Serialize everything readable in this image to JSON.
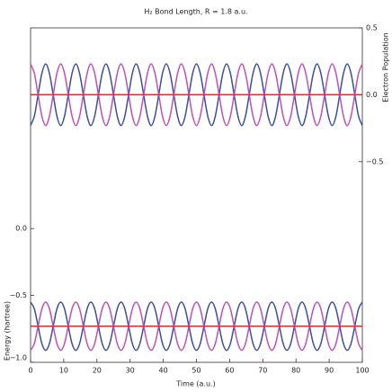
{
  "chart_data": {
    "type": "line",
    "title": "H₂ Bond Length, R = 1.8 a.u.",
    "xlabel": "Time (a.u.)",
    "ylabel": "Energy (hartree)",
    "y2label": "Electron Population",
    "x": [
      0,
      1.14,
      2.27,
      3.41,
      4.55,
      5.68,
      6.82,
      7.95,
      9.09,
      10.23,
      11.36,
      12.5,
      13.64,
      14.77,
      15.91,
      17.05,
      18.18,
      19.32,
      20.45,
      21.59,
      22.73,
      23.86,
      25,
      26.14,
      27.27,
      28.41,
      29.55,
      30.68,
      31.82,
      32.95,
      34.09,
      35.23,
      36.36,
      37.5,
      38.64,
      39.77,
      40.91,
      42.05,
      43.18,
      44.32,
      45.45,
      46.59,
      47.73,
      48.86,
      50,
      51.14,
      52.27,
      53.41,
      54.55,
      55.68,
      56.82,
      57.95,
      59.09,
      60.23,
      61.36,
      62.5,
      63.64,
      64.77,
      65.91,
      67.05,
      68.18,
      69.32,
      70.45,
      71.59,
      72.73,
      73.86,
      75,
      76.14,
      77.27,
      78.41,
      79.55,
      80.68,
      81.82,
      82.95,
      84.09,
      85.23,
      86.36,
      87.5,
      88.64,
      89.77,
      90.91,
      92.05,
      93.18,
      94.32,
      95.45,
      96.59,
      97.73,
      98.86,
      100
    ],
    "xlim": [
      0,
      100
    ],
    "xticks": [
      0,
      10,
      20,
      30,
      40,
      50,
      60,
      70,
      80,
      90,
      100
    ],
    "ylim": [
      -1,
      1.5
    ],
    "yticks": [
      {
        "value": -1,
        "label": "−1.0"
      },
      {
        "value": -0.5,
        "label": "−0.5"
      },
      {
        "value": 0,
        "label": "0.0"
      }
    ],
    "y2lim": [
      -2,
      0.5
    ],
    "y2ticks": [
      {
        "value": 0.5,
        "label": "0.5"
      },
      {
        "value": 0,
        "label": "0.0"
      },
      {
        "value": -0.5,
        "label": "−0.5"
      }
    ],
    "series": [
      {
        "color": "#3b4ea0",
        "axis": "y2",
        "values": [
          -0.23,
          -0.16,
          0,
          0.16,
          0.23,
          0.16,
          0,
          -0.16,
          -0.23,
          -0.16,
          0,
          0.16,
          0.23,
          0.16,
          0,
          -0.16,
          -0.23,
          -0.16,
          0,
          0.16,
          0.23,
          0.16,
          0,
          -0.16,
          -0.23,
          -0.16,
          0,
          0.16,
          0.23,
          0.16,
          0,
          -0.16,
          -0.23,
          -0.16,
          0,
          0.16,
          0.23,
          0.16,
          0,
          -0.16,
          -0.23,
          -0.16,
          0,
          0.16,
          0.23,
          0.16,
          0,
          -0.16,
          -0.23,
          -0.16,
          0,
          0.16,
          0.23,
          0.16,
          0,
          -0.16,
          -0.23,
          -0.16,
          0,
          0.16,
          0.23,
          0.16,
          0,
          -0.16,
          -0.23,
          -0.16,
          0,
          0.16,
          0.23,
          0.16,
          0,
          -0.16,
          -0.23,
          -0.16,
          0,
          0.16,
          0.23,
          0.16,
          0,
          -0.16,
          -0.23,
          -0.16,
          0,
          0.16,
          0.23,
          0.16,
          0,
          -0.16,
          -0.23
        ]
      },
      {
        "color": "#c050b4",
        "axis": "y2",
        "values": [
          0.23,
          0.16,
          0,
          -0.16,
          -0.23,
          -0.16,
          0,
          0.16,
          0.23,
          0.16,
          0,
          -0.16,
          -0.23,
          -0.16,
          0,
          0.16,
          0.23,
          0.16,
          0,
          -0.16,
          -0.23,
          -0.16,
          0,
          0.16,
          0.23,
          0.16,
          0,
          -0.16,
          -0.23,
          -0.16,
          0,
          0.16,
          0.23,
          0.16,
          0,
          -0.16,
          -0.23,
          -0.16,
          0,
          0.16,
          0.23,
          0.16,
          0,
          -0.16,
          -0.23,
          -0.16,
          0,
          0.16,
          0.23,
          0.16,
          0,
          -0.16,
          -0.23,
          -0.16,
          0,
          0.16,
          0.23,
          0.16,
          0,
          -0.16,
          -0.23,
          -0.16,
          0,
          0.16,
          0.23,
          0.16,
          0,
          -0.16,
          -0.23,
          -0.16,
          0,
          0.16,
          0.23,
          0.16,
          0,
          -0.16,
          -0.23,
          -0.16,
          0,
          0.16,
          0.23,
          0.16,
          0,
          -0.16,
          -0.23,
          -0.16,
          0,
          0.16,
          0.23
        ]
      },
      {
        "color": "#e02424",
        "axis": "y2",
        "values": [
          0,
          0,
          0,
          0,
          0,
          0,
          0,
          0,
          0,
          0,
          0,
          0,
          0,
          0,
          0,
          0,
          0,
          0,
          0,
          0,
          0,
          0,
          0,
          0,
          0,
          0,
          0,
          0,
          0,
          0,
          0,
          0,
          0,
          0,
          0,
          0,
          0,
          0,
          0,
          0,
          0,
          0,
          0,
          0,
          0,
          0,
          0,
          0,
          0,
          0,
          0,
          0,
          0,
          0,
          0,
          0,
          0,
          0,
          0,
          0,
          0,
          0,
          0,
          0,
          0,
          0,
          0,
          0,
          0,
          0,
          0,
          0,
          0,
          0,
          0,
          0,
          0,
          0,
          0,
          0,
          0,
          0,
          0,
          0,
          0,
          0,
          0,
          0,
          0
        ]
      },
      {
        "color": "#3b4ea0",
        "values": [
          -0.55,
          -0.6,
          -0.73,
          -0.86,
          -0.91,
          -0.86,
          -0.73,
          -0.6,
          -0.55,
          -0.6,
          -0.73,
          -0.86,
          -0.91,
          -0.86,
          -0.73,
          -0.6,
          -0.55,
          -0.6,
          -0.73,
          -0.86,
          -0.91,
          -0.86,
          -0.73,
          -0.6,
          -0.55,
          -0.6,
          -0.73,
          -0.86,
          -0.91,
          -0.86,
          -0.73,
          -0.6,
          -0.55,
          -0.6,
          -0.73,
          -0.86,
          -0.91,
          -0.86,
          -0.73,
          -0.6,
          -0.55,
          -0.6,
          -0.73,
          -0.86,
          -0.91,
          -0.86,
          -0.73,
          -0.6,
          -0.55,
          -0.6,
          -0.73,
          -0.86,
          -0.91,
          -0.86,
          -0.73,
          -0.6,
          -0.55,
          -0.6,
          -0.73,
          -0.86,
          -0.91,
          -0.86,
          -0.73,
          -0.6,
          -0.55,
          -0.6,
          -0.73,
          -0.86,
          -0.91,
          -0.86,
          -0.73,
          -0.6,
          -0.55,
          -0.6,
          -0.73,
          -0.86,
          -0.91,
          -0.86,
          -0.73,
          -0.6,
          -0.55,
          -0.6,
          -0.73,
          -0.86,
          -0.91,
          -0.86,
          -0.73,
          -0.6,
          -0.55
        ]
      },
      {
        "color": "#c050b4",
        "values": [
          -0.91,
          -0.86,
          -0.73,
          -0.6,
          -0.55,
          -0.6,
          -0.73,
          -0.86,
          -0.91,
          -0.86,
          -0.73,
          -0.6,
          -0.55,
          -0.6,
          -0.73,
          -0.86,
          -0.91,
          -0.86,
          -0.73,
          -0.6,
          -0.55,
          -0.6,
          -0.73,
          -0.86,
          -0.91,
          -0.86,
          -0.73,
          -0.6,
          -0.55,
          -0.6,
          -0.73,
          -0.86,
          -0.91,
          -0.86,
          -0.73,
          -0.6,
          -0.55,
          -0.6,
          -0.73,
          -0.86,
          -0.91,
          -0.86,
          -0.73,
          -0.6,
          -0.55,
          -0.6,
          -0.73,
          -0.86,
          -0.91,
          -0.86,
          -0.73,
          -0.6,
          -0.55,
          -0.6,
          -0.73,
          -0.86,
          -0.91,
          -0.86,
          -0.73,
          -0.6,
          -0.55,
          -0.6,
          -0.73,
          -0.86,
          -0.91,
          -0.86,
          -0.73,
          -0.6,
          -0.55,
          -0.6,
          -0.73,
          -0.86,
          -0.91,
          -0.86,
          -0.73,
          -0.6,
          -0.55,
          -0.6,
          -0.73,
          -0.86,
          -0.91,
          -0.86,
          -0.73,
          -0.6,
          -0.55,
          -0.6,
          -0.73,
          -0.86,
          -0.91
        ]
      },
      {
        "color": "#e02424",
        "values": [
          -0.73,
          -0.73,
          -0.73,
          -0.73,
          -0.73,
          -0.73,
          -0.73,
          -0.73,
          -0.73,
          -0.73,
          -0.73,
          -0.73,
          -0.73,
          -0.73,
          -0.73,
          -0.73,
          -0.73,
          -0.73,
          -0.73,
          -0.73,
          -0.73,
          -0.73,
          -0.73,
          -0.73,
          -0.73,
          -0.73,
          -0.73,
          -0.73,
          -0.73,
          -0.73,
          -0.73,
          -0.73,
          -0.73,
          -0.73,
          -0.73,
          -0.73,
          -0.73,
          -0.73,
          -0.73,
          -0.73,
          -0.73,
          -0.73,
          -0.73,
          -0.73,
          -0.73,
          -0.73,
          -0.73,
          -0.73,
          -0.73,
          -0.73,
          -0.73,
          -0.73,
          -0.73,
          -0.73,
          -0.73,
          -0.73,
          -0.73,
          -0.73,
          -0.73,
          -0.73,
          -0.73,
          -0.73,
          -0.73,
          -0.73,
          -0.73,
          -0.73,
          -0.73,
          -0.73,
          -0.73,
          -0.73,
          -0.73,
          -0.73,
          -0.73,
          -0.73,
          -0.73,
          -0.73,
          -0.73,
          -0.73,
          -0.73,
          -0.73,
          -0.73,
          -0.73,
          -0.73,
          -0.73,
          -0.73,
          -0.73,
          -0.73,
          -0.73,
          -0.73
        ]
      }
    ]
  }
}
